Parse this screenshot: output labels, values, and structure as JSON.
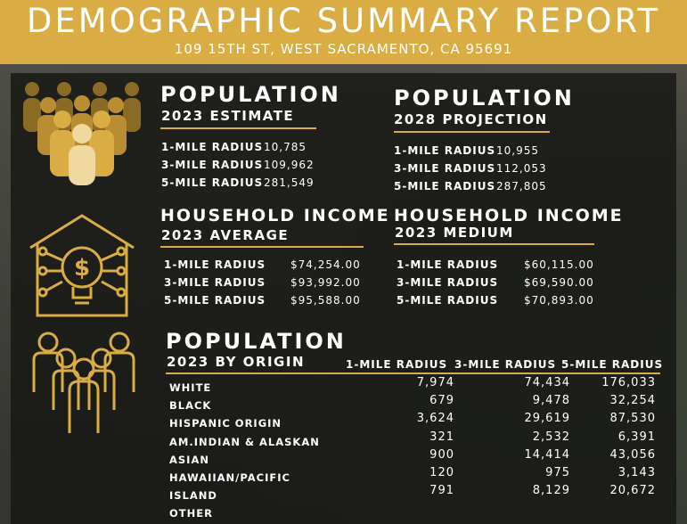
{
  "header": {
    "title": "DEMOGRAPHIC SUMMARY REPORT",
    "address": "109 15TH ST, WEST SACRAMENTO, CA 95691"
  },
  "pop2023": {
    "heading": "POPULATION",
    "sub": "2023 ESTIMATE",
    "rows": [
      {
        "label": "1-MILE RADIUS",
        "value": "10,785"
      },
      {
        "label": "3-MILE RADIUS",
        "value": "109,962"
      },
      {
        "label": "5-MILE RADIUS",
        "value": "281,549"
      }
    ]
  },
  "pop2028": {
    "heading": "POPULATION",
    "sub": "2028 PROJECTION",
    "rows": [
      {
        "label": "1-MILE RADIUS",
        "value": "10,955"
      },
      {
        "label": "3-MILE RADIUS",
        "value": "112,053"
      },
      {
        "label": "5-MILE RADIUS",
        "value": "287,805"
      }
    ]
  },
  "incAvg": {
    "heading": "HOUSEHOLD INCOME",
    "sub": "2023 AVERAGE",
    "rows": [
      {
        "label": "1-MILE RADIUS",
        "value": "$74,254.00"
      },
      {
        "label": "3-MILE RADIUS",
        "value": "$93,992.00"
      },
      {
        "label": "5-MILE RADIUS",
        "value": "$95,588.00"
      }
    ]
  },
  "incMed": {
    "heading": "HOUSEHOLD INCOME",
    "sub": "2023 MEDIUM",
    "rows": [
      {
        "label": "1-MILE RADIUS",
        "value": "$60,115.00"
      },
      {
        "label": "3-MILE RADIUS",
        "value": "$69,590.00"
      },
      {
        "label": "5-MILE RADIUS",
        "value": "$70,893.00"
      }
    ]
  },
  "origin": {
    "heading": "POPULATION",
    "sub": "2023 BY ORIGIN",
    "columns": [
      "1-MILE RADIUS",
      "3-MILE RADIUS",
      "5-MILE RADIUS"
    ],
    "rows": [
      {
        "label": "WHITE",
        "values": [
          "7,974",
          "74,434",
          "176,033"
        ]
      },
      {
        "label": "BLACK",
        "values": [
          "679",
          "9,478",
          "32,254"
        ]
      },
      {
        "label": "HISPANIC ORIGIN",
        "values": [
          "3,624",
          "29,619",
          "87,530"
        ]
      },
      {
        "label": "AM.INDIAN & ALASKAN",
        "values": [
          "321",
          "2,532",
          "6,391"
        ]
      },
      {
        "label": "ASIAN",
        "values": [
          "900",
          "14,414",
          "43,056"
        ]
      },
      {
        "label": "HAWAIIAN/PACIFIC",
        "values": [
          "120",
          "975",
          "3,143"
        ]
      },
      {
        "label": "ISLAND",
        "values": [
          "791",
          "8,129",
          "20,672"
        ]
      },
      {
        "label": "OTHER",
        "values": [
          "",
          "",
          ""
        ]
      }
    ]
  },
  "colors": {
    "gold": "#d9ad43",
    "light_gold": "#f0d9a0",
    "panel": "#161614"
  },
  "icons": [
    "people-group-icon",
    "house-lightbulb-icon",
    "family-outline-icon"
  ]
}
